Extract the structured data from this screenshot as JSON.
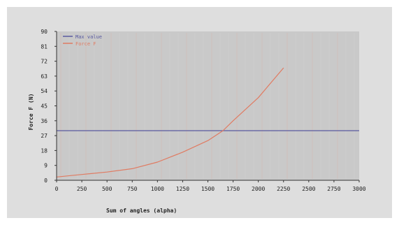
{
  "chart_data": {
    "type": "line",
    "title": "",
    "xlabel": "Sum of angles (alpha)",
    "ylabel": "Force F (N)",
    "xlim": [
      0,
      3000
    ],
    "ylim": [
      0,
      90
    ],
    "xticks": [
      "0",
      "250",
      "500",
      "750",
      "1000",
      "1250",
      "1500",
      "1750",
      "2000",
      "2250",
      "2500",
      "2750",
      "3000"
    ],
    "yticks": [
      "0",
      "9",
      "18",
      "27",
      "36",
      "45",
      "54",
      "63",
      "72",
      "81",
      "90"
    ],
    "legend_position": "top-left",
    "grid": false,
    "series": [
      {
        "name": "Max value",
        "color": "#5a5aa0",
        "x": [
          0,
          3000
        ],
        "y": [
          30,
          30
        ]
      },
      {
        "name": "Force F",
        "color": "#e07b62",
        "x": [
          0,
          250,
          500,
          750,
          1000,
          1250,
          1500,
          1650,
          1750,
          2000,
          2250
        ],
        "y": [
          2,
          3.5,
          5,
          7,
          11,
          17,
          24,
          30,
          36,
          50,
          68
        ]
      }
    ]
  }
}
